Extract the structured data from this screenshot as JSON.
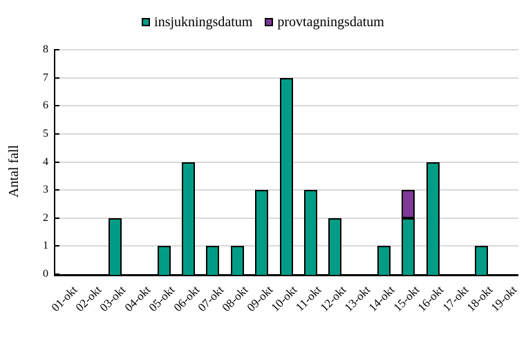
{
  "chart_data": {
    "type": "bar",
    "stacked": true,
    "categories": [
      "01-okt",
      "02-okt",
      "03-okt",
      "04-okt",
      "05-okt",
      "06-okt",
      "07-okt",
      "08-okt",
      "09-okt",
      "10-okt",
      "11-okt",
      "12-okt",
      "13-okt",
      "14-okt",
      "15-okt",
      "16-okt",
      "17-okt",
      "18-okt",
      "19-okt"
    ],
    "series": [
      {
        "name": "insjukningsdatum",
        "color": "#009c86",
        "values": [
          0,
          0,
          2,
          0,
          1,
          4,
          1,
          1,
          3,
          7,
          3,
          2,
          0,
          1,
          2,
          4,
          0,
          1,
          0
        ]
      },
      {
        "name": "provtagningsdatum",
        "color": "#7d3a96",
        "values": [
          0,
          0,
          0,
          0,
          0,
          0,
          0,
          0,
          0,
          0,
          0,
          0,
          0,
          0,
          1,
          0,
          0,
          0,
          0
        ]
      }
    ],
    "title": "",
    "xlabel": "",
    "ylabel": "Antal fall",
    "ylim": [
      0,
      8
    ],
    "ytick_step": 1,
    "yticks": [
      0,
      1,
      2,
      3,
      4,
      5,
      6,
      7,
      8
    ],
    "grid": true,
    "gridline_color": "#d9d9d9",
    "bar_outline_color": "#000000",
    "axis_color": "#000000",
    "legend_position": "top"
  }
}
